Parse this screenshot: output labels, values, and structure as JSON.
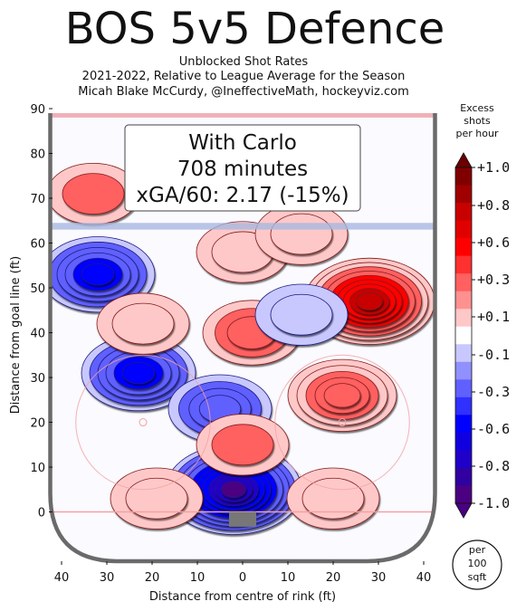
{
  "title": "BOS 5v5 Defence",
  "subtitle_lines": [
    "Unblocked Shot Rates",
    "2021-2022, Relative to League Average for the Season",
    "Micah Blake McCurdy, @IneffectiveMath, hockeyviz.com"
  ],
  "box": {
    "line1": "With Carlo",
    "line2": "708 minutes",
    "line3": "xGA/60: 2.17 (-15%)"
  },
  "chart_data": {
    "type": "heatmap",
    "xlabel": "Distance from centre of rink (ft)",
    "ylabel": "Distance from goal line (ft)",
    "xlim": [
      42,
      -42
    ],
    "ylim": [
      -11,
      90
    ],
    "x_ticks": [
      "40",
      "30",
      "20",
      "10",
      "0",
      "10",
      "20",
      "30",
      "40"
    ],
    "y_ticks": [
      "0",
      "10",
      "20",
      "30",
      "40",
      "50",
      "60",
      "70",
      "80",
      "90"
    ],
    "colorbar": {
      "title": [
        "Excess",
        "shots",
        "per hour"
      ],
      "ticks": [
        "+1.0",
        "+0.8",
        "+0.6",
        "+0.3",
        "+0.1",
        "-0.1",
        "-0.3",
        "-0.6",
        "-0.8",
        "-1.0"
      ],
      "unit_lines": [
        "per",
        "100",
        "sqft"
      ]
    },
    "blobs": [
      {
        "x": 2,
        "y": 5,
        "value": -1.0
      },
      {
        "x": 23,
        "y": 31,
        "value": -0.6
      },
      {
        "x": 32,
        "y": 53,
        "value": -0.6
      },
      {
        "x": 5,
        "y": 23,
        "value": -0.4
      },
      {
        "x": -28,
        "y": 47,
        "value": 0.85
      },
      {
        "x": -22,
        "y": 26,
        "value": 0.45
      },
      {
        "x": -2,
        "y": 40,
        "value": 0.3
      },
      {
        "x": 0,
        "y": 15,
        "value": 0.2
      },
      {
        "x": 22,
        "y": 42,
        "value": 0.15
      },
      {
        "x": 0,
        "y": 58,
        "value": 0.15
      },
      {
        "x": -13,
        "y": 44,
        "value": -0.15
      },
      {
        "x": 19,
        "y": 3,
        "value": 0.15
      },
      {
        "x": -20,
        "y": 3,
        "value": 0.15
      },
      {
        "x": 33,
        "y": 71,
        "value": 0.2
      },
      {
        "x": -13,
        "y": 62,
        "value": 0.15
      }
    ]
  }
}
